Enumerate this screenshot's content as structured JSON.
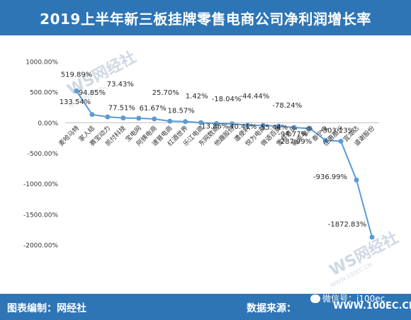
{
  "header": {
    "title": "2019上半年新三板挂牌零售电商公司净利润增长率"
  },
  "footer": {
    "left_label": "图表编制：网经社",
    "right_label": "数据来源：",
    "source_text": "WWW.100EC.CN"
  },
  "wechat_badge": {
    "text": "微信号：i100ec"
  },
  "watermarks": [
    {
      "main": "WS网经社",
      "sub": "电子商务研究中心"
    },
    {
      "main": "WS网经社",
      "sub": "WWW.100EC.CN"
    }
  ],
  "colors": {
    "header_bg": "#2e75b6",
    "line": "#5b9bd5",
    "axis_text": "#333333",
    "grid": "#d9d9d9"
  },
  "chart_data": {
    "type": "line",
    "title": "2019上半年新三板挂牌零售电商公司净利润增长率",
    "xlabel": "",
    "ylabel": "",
    "ylim": [
      -2000,
      1000
    ],
    "yticks": [
      "1000.00%",
      "500.00%",
      "0.00%",
      "-500.00%",
      "-1000.00%",
      "-1500.00%",
      "-2000.00%"
    ],
    "ytick_values": [
      1000,
      500,
      0,
      -500,
      -1000,
      -1500,
      -2000
    ],
    "grid": false,
    "categories": [
      "麦哈马特",
      "家人结",
      "赛宝动力",
      "凯付科技",
      "宝电网",
      "阿姨电商",
      "速普电商",
      "红酒世界",
      "乐江电商",
      "东网数商",
      "他趣股份",
      "遭便利",
      "悦为电商",
      "微语百美",
      "雪井意风",
      "帷丰电商",
      "泰宁电",
      "佳惠股份",
      "宜龙达",
      "道谢股份"
    ],
    "values": [
      519.89,
      133.54,
      94.85,
      77.51,
      73.43,
      61.67,
      25.7,
      18.57,
      1.42,
      -13.86,
      -18.04,
      -40.41,
      -44.44,
      -55.44,
      -78.24,
      -94.77,
      -287.99,
      -303.13,
      -936.99,
      -1872.83
    ],
    "data_labels": [
      "519.89%",
      "133.54%",
      "94.85%",
      "77.51%",
      "73.43%",
      "61.67%",
      "25.70%",
      "18.57%",
      "1.42%",
      "-13.86%",
      "-18.04%",
      "-40.41%",
      "-44.44%",
      "-55.44%",
      "-78.24%",
      "-94.77%",
      "-287.99%",
      "-303.13%",
      "-936.99%",
      "-1872.83%"
    ]
  }
}
